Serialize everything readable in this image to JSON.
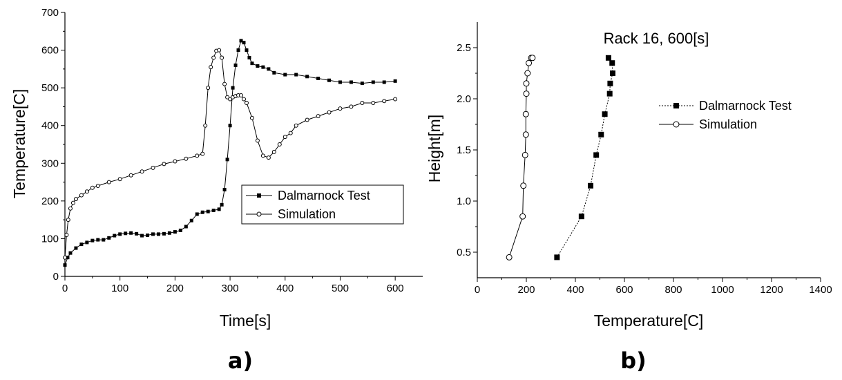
{
  "figure": {
    "panel_a_label": "a)",
    "panel_b_label": "b)"
  },
  "chart_data": [
    {
      "type": "line",
      "title": "",
      "xlabel": "Time[s]",
      "ylabel": "Temperature[C]",
      "xlim": [
        0,
        650
      ],
      "ylim": [
        0,
        700
      ],
      "xticks": [
        "0",
        "100",
        "200",
        "300",
        "400",
        "500",
        "600"
      ],
      "yticks": [
        "0",
        "100",
        "200",
        "300",
        "400",
        "500",
        "600",
        "700"
      ],
      "legend_position": "center-right",
      "series": [
        {
          "name": "Dalmarnock Test",
          "marker": "filled-square",
          "x": [
            0,
            5,
            10,
            20,
            30,
            40,
            50,
            60,
            70,
            80,
            90,
            100,
            110,
            120,
            130,
            140,
            150,
            160,
            170,
            180,
            190,
            200,
            210,
            220,
            230,
            240,
            250,
            260,
            270,
            280,
            285,
            290,
            295,
            300,
            305,
            310,
            315,
            320,
            325,
            330,
            335,
            340,
            350,
            360,
            370,
            380,
            400,
            420,
            440,
            460,
            480,
            500,
            520,
            540,
            560,
            580,
            600
          ],
          "y": [
            30,
            50,
            62,
            75,
            85,
            90,
            95,
            97,
            97,
            102,
            108,
            112,
            114,
            115,
            113,
            108,
            109,
            112,
            112,
            113,
            115,
            118,
            122,
            132,
            148,
            165,
            170,
            172,
            175,
            178,
            190,
            230,
            310,
            400,
            500,
            560,
            600,
            625,
            620,
            600,
            580,
            565,
            558,
            555,
            550,
            540,
            535,
            535,
            530,
            525,
            520,
            515,
            515,
            512,
            515,
            515,
            518
          ]
        },
        {
          "name": "Simulation",
          "marker": "open-circle",
          "x": [
            0,
            3,
            6,
            10,
            15,
            20,
            30,
            40,
            50,
            60,
            80,
            100,
            120,
            140,
            160,
            180,
            200,
            220,
            240,
            250,
            255,
            260,
            265,
            270,
            275,
            280,
            285,
            290,
            295,
            300,
            305,
            310,
            315,
            320,
            325,
            330,
            340,
            350,
            360,
            370,
            380,
            390,
            400,
            410,
            420,
            440,
            460,
            480,
            500,
            520,
            540,
            560,
            580,
            600
          ],
          "y": [
            50,
            110,
            150,
            180,
            195,
            205,
            215,
            225,
            235,
            240,
            250,
            258,
            268,
            278,
            288,
            298,
            305,
            312,
            320,
            325,
            400,
            500,
            555,
            580,
            598,
            600,
            580,
            510,
            475,
            470,
            475,
            478,
            480,
            480,
            470,
            460,
            420,
            360,
            320,
            315,
            330,
            350,
            370,
            380,
            400,
            415,
            425,
            435,
            445,
            450,
            460,
            460,
            465,
            470
          ]
        }
      ]
    },
    {
      "type": "line",
      "title": "Rack 16, 600[s]",
      "xlabel": "Temperature[C]",
      "ylabel": "Height[m]",
      "xlim": [
        0,
        1400
      ],
      "ylim": [
        0.25,
        2.75
      ],
      "xticks": [
        "0",
        "200",
        "400",
        "600",
        "800",
        "1000",
        "1200",
        "1400"
      ],
      "yticks": [
        "0.5",
        "1.0",
        "1.5",
        "2.0",
        "2.5"
      ],
      "legend_position": "top-right",
      "series": [
        {
          "name": "Dalmarnock Test",
          "marker": "filled-square",
          "line": "dotted",
          "x": [
            325,
            425,
            462,
            485,
            505,
            520,
            540,
            542,
            552,
            550,
            535
          ],
          "y": [
            0.45,
            0.85,
            1.15,
            1.45,
            1.65,
            1.85,
            2.05,
            2.15,
            2.25,
            2.35,
            2.4
          ]
        },
        {
          "name": "Simulation",
          "marker": "open-circle",
          "line": "solid",
          "x": [
            130,
            185,
            188,
            195,
            198,
            198,
            200,
            200,
            205,
            210,
            220,
            225
          ],
          "y": [
            0.45,
            0.85,
            1.15,
            1.45,
            1.65,
            1.85,
            2.05,
            2.15,
            2.25,
            2.35,
            2.4,
            2.4
          ]
        }
      ]
    }
  ]
}
